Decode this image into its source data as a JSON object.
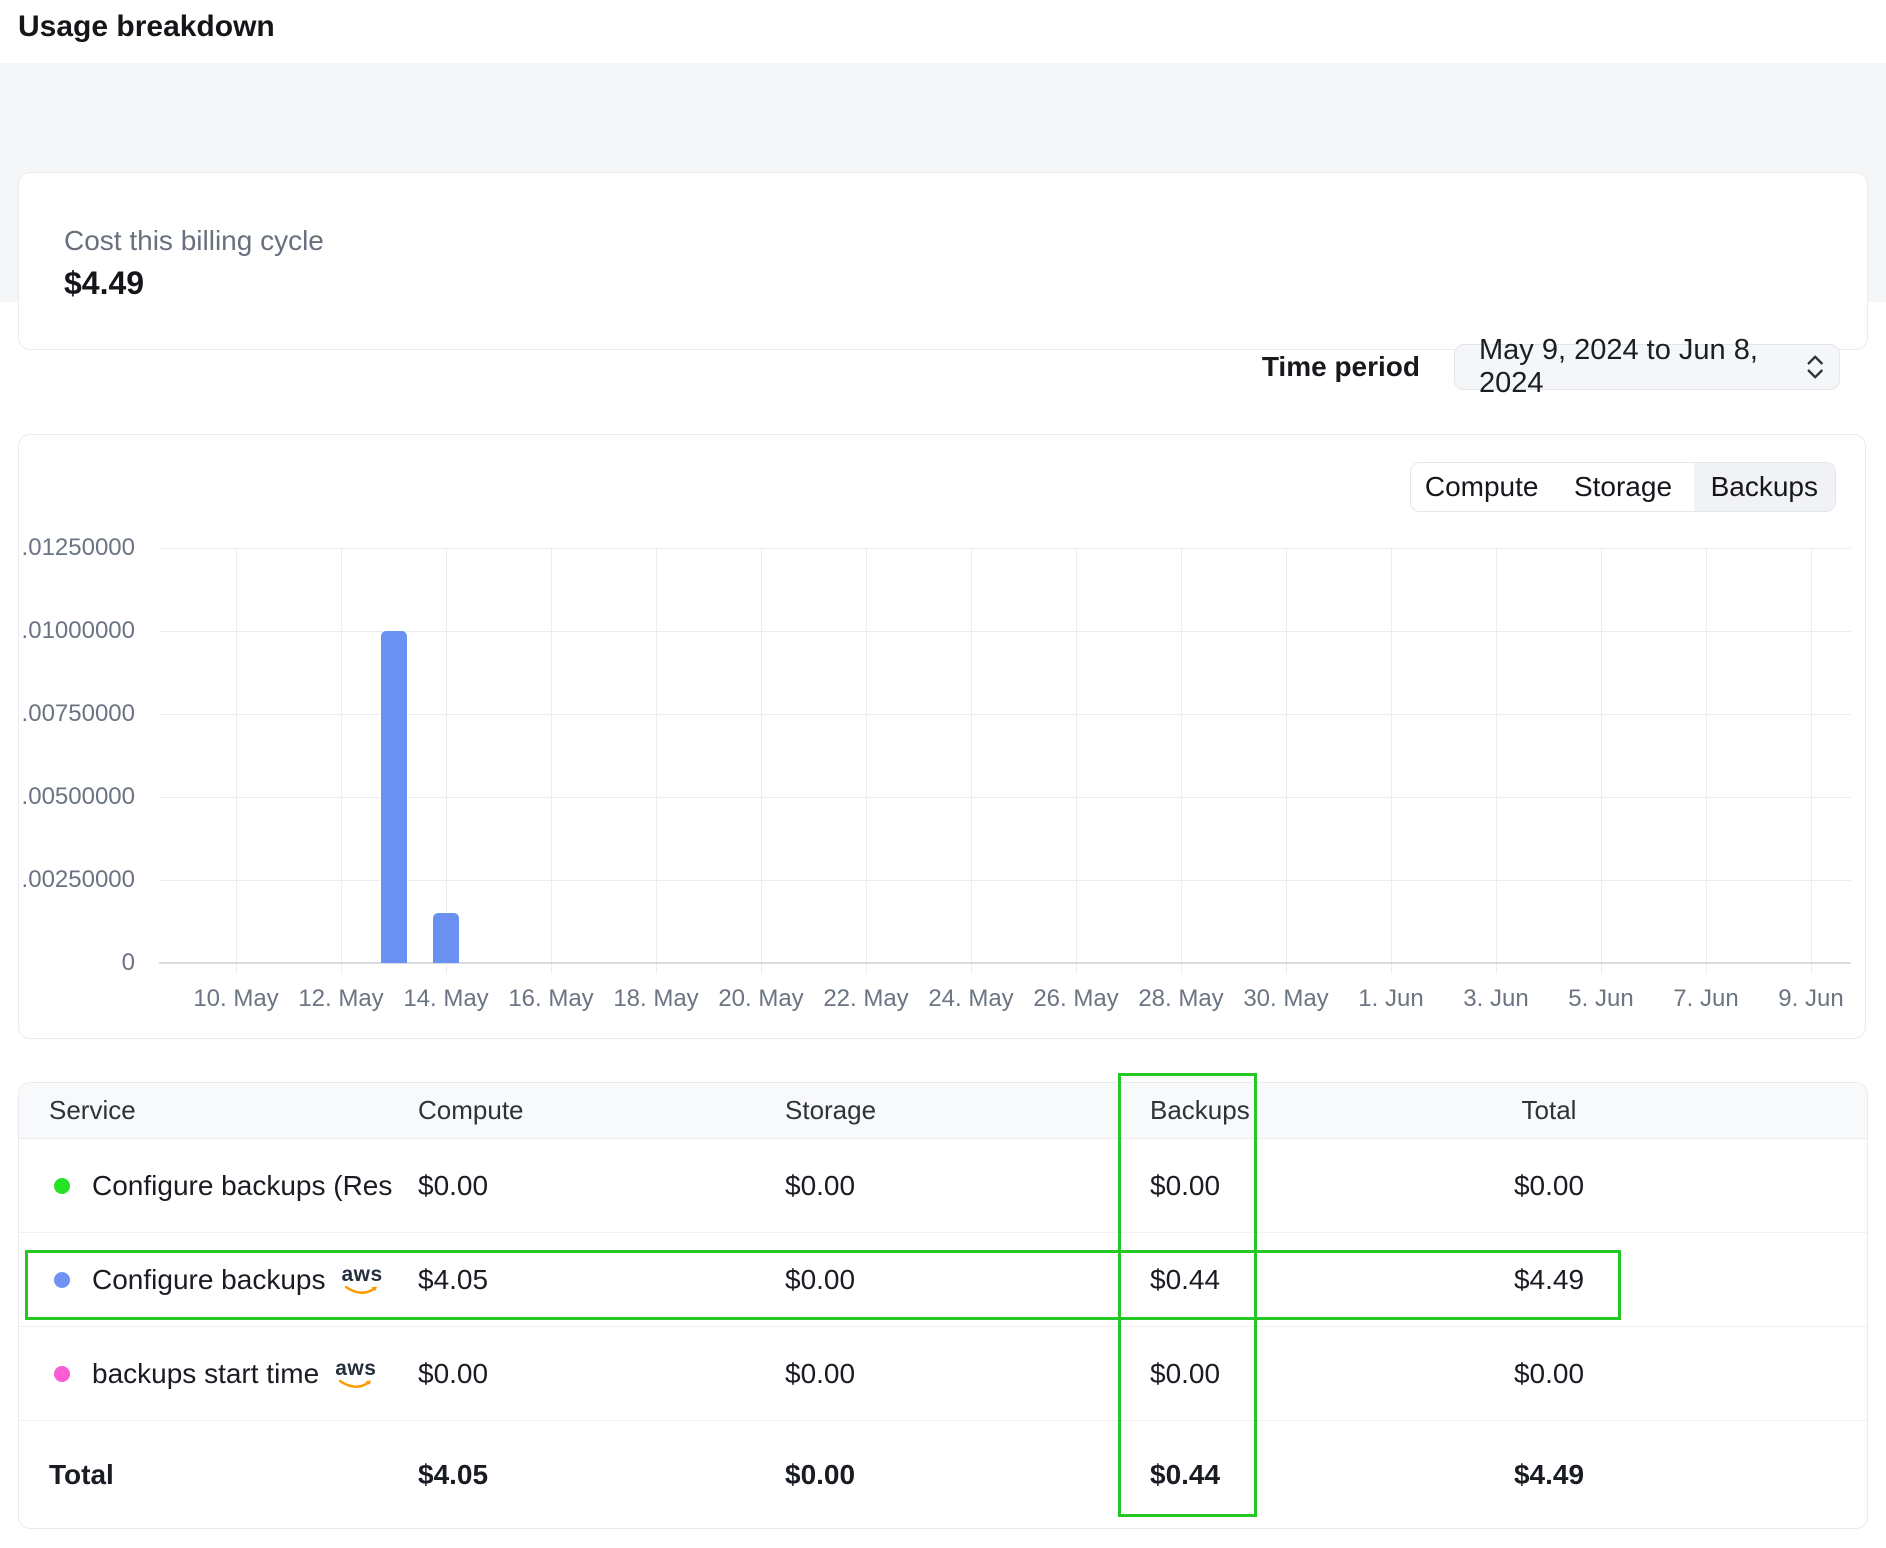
{
  "page": {
    "title": "Usage breakdown"
  },
  "summary_card": {
    "label": "Cost this billing cycle",
    "value": "$4.49"
  },
  "time_period": {
    "label": "Time period",
    "value": "May 9, 2024 to Jun 8, 2024"
  },
  "tabs": [
    {
      "label": "Compute",
      "selected": false
    },
    {
      "label": "Storage",
      "selected": false
    },
    {
      "label": "Backups",
      "selected": true
    }
  ],
  "colors": {
    "bar_blue": "#6a91f2",
    "dot_green": "#26e226",
    "dot_blue": "#6f93f3",
    "dot_pink": "#f95cd3",
    "annotation_green": "#24c724"
  },
  "chart_data": {
    "type": "bar",
    "title": "",
    "xlabel": "",
    "ylabel": "",
    "ylim": [
      0,
      0.0125
    ],
    "grid": true,
    "legend": "none",
    "y_ticks": [
      0.0125,
      0.01,
      0.0075,
      0.005,
      0.0025,
      0
    ],
    "y_tick_labels": [
      ".01250000",
      ".01000000",
      ".00750000",
      ".00500000",
      ".00250000",
      "0"
    ],
    "x_tick_labels": [
      "10. May",
      "12. May",
      "14. May",
      "16. May",
      "18. May",
      "20. May",
      "22. May",
      "24. May",
      "26. May",
      "28. May",
      "30. May",
      "1. Jun",
      "3. Jun",
      "5. Jun",
      "7. Jun",
      "9. Jun"
    ],
    "bars": [
      {
        "x_label": "13. May",
        "value": 0.01
      },
      {
        "x_label": "14. May",
        "value": 0.0015
      }
    ]
  },
  "table": {
    "columns": [
      "Service",
      "Compute",
      "Storage",
      "Backups",
      "Total"
    ],
    "rows": [
      {
        "dot_color": "#26e226",
        "service": "Configure backups (Resto",
        "aws_badge": "",
        "compute": "$0.00",
        "storage": "$0.00",
        "backups": "$0.00",
        "total": "$0.00"
      },
      {
        "dot_color": "#6f93f3",
        "service": "Configure backups",
        "aws_badge": "aws",
        "compute": "$4.05",
        "storage": "$0.00",
        "backups": "$0.44",
        "total": "$4.49"
      },
      {
        "dot_color": "#f95cd3",
        "service": "backups start time",
        "aws_badge": "aws",
        "compute": "$0.00",
        "storage": "$0.00",
        "backups": "$0.00",
        "total": "$0.00"
      }
    ],
    "total_row": {
      "label": "Total",
      "compute": "$4.05",
      "storage": "$0.00",
      "backups": "$0.44",
      "total": "$4.49"
    }
  }
}
